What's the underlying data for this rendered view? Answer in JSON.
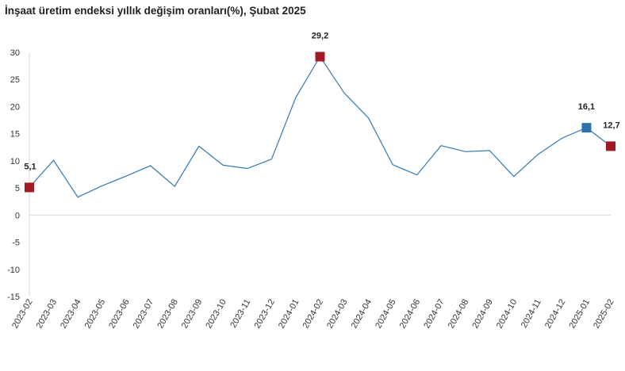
{
  "chart_data": {
    "type": "line",
    "title": "İnşaat üretim endeksi yıllık değişim oranları(%), Şubat 2025",
    "xlabel": "",
    "ylabel": "",
    "ylim": [
      -15,
      30
    ],
    "yticks": [
      "30",
      "25",
      "20",
      "15",
      "10",
      "5",
      "0",
      "-5",
      "-10",
      "-15"
    ],
    "grid": false,
    "legend": "none",
    "categories": [
      "2023-02",
      "2023-03",
      "2023-04",
      "2023-05",
      "2023-06",
      "2023-07",
      "2023-08",
      "2023-09",
      "2023-10",
      "2023-11",
      "2023-12",
      "2024-01",
      "2024-02",
      "2024-03",
      "2024-04",
      "2024-05",
      "2024-06",
      "2024-07",
      "2024-08",
      "2024-09",
      "2024-10",
      "2024-11",
      "2024-12",
      "2025-01",
      "2025-02"
    ],
    "series": [
      {
        "values": [
          5.1,
          10.1,
          3.3,
          5.4,
          7.2,
          9.1,
          5.3,
          12.7,
          9.2,
          8.6,
          10.3,
          21.7,
          29.2,
          22.5,
          17.9,
          9.3,
          7.4,
          12.8,
          11.7,
          11.9,
          7.1,
          11.2,
          14.2,
          16.1,
          12.7
        ]
      }
    ],
    "highlights": [
      {
        "category": "2023-02",
        "label": "5,1",
        "color": "#a11b24"
      },
      {
        "category": "2024-02",
        "label": "29,2",
        "color": "#a11b24"
      },
      {
        "category": "2025-01",
        "label": "16,1",
        "color": "#2e6fae"
      },
      {
        "category": "2025-02",
        "label": "12,7",
        "color": "#a11b24"
      }
    ],
    "colors": {
      "line": "#2f79b5",
      "axis": "#d9d9d9"
    }
  }
}
